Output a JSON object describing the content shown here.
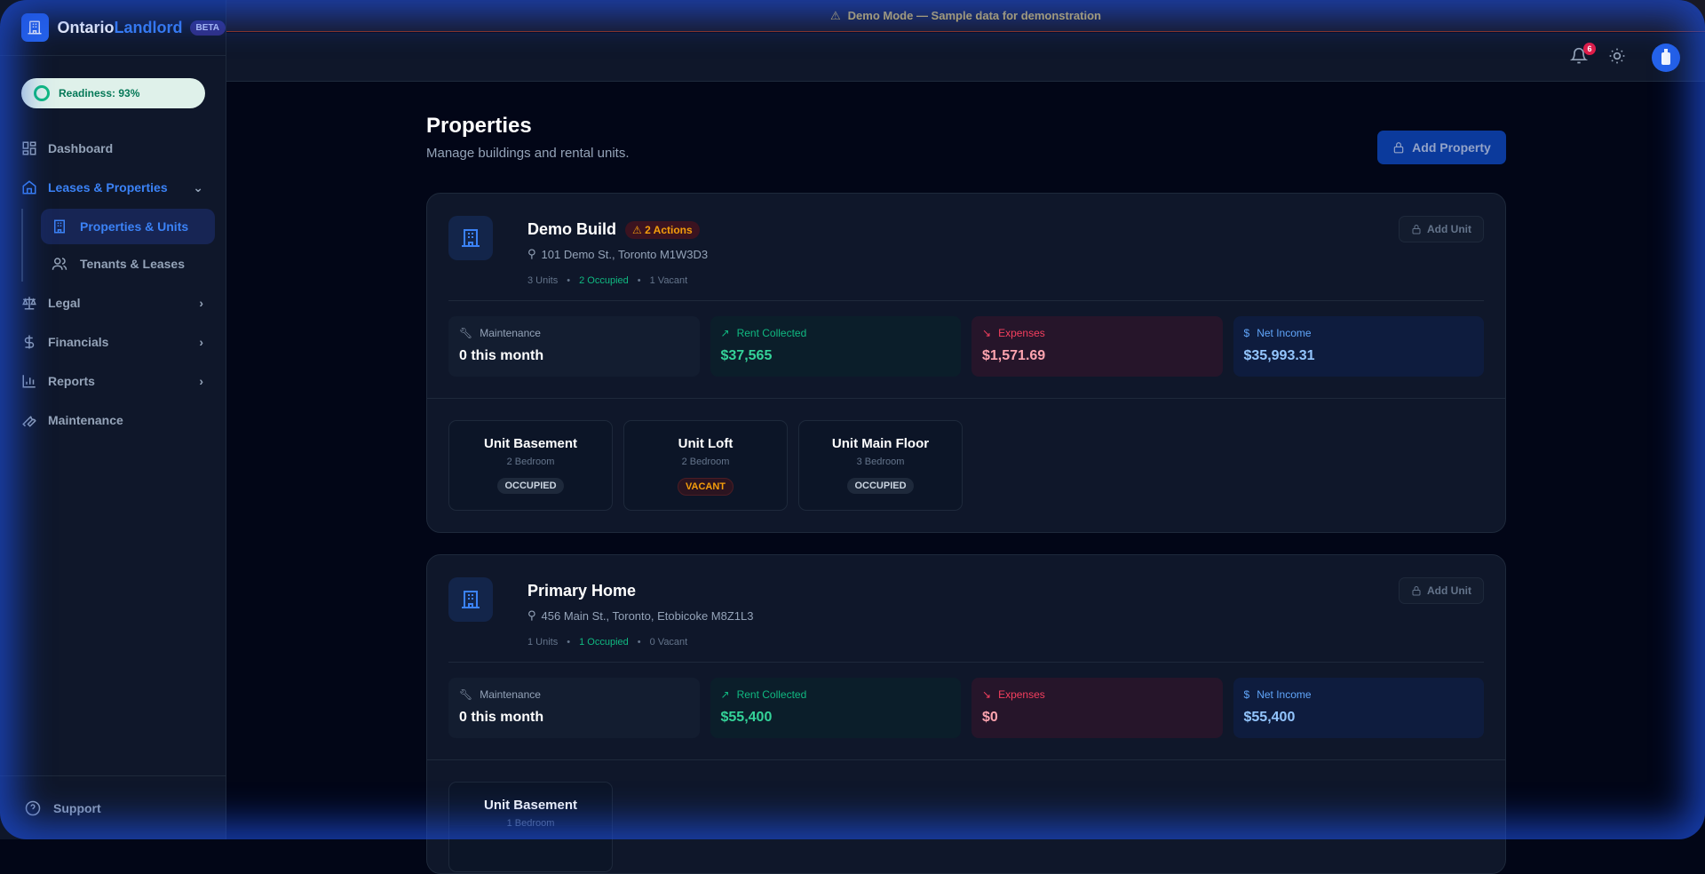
{
  "app": {
    "name_part1": "Ontario",
    "name_part2": "Landlord",
    "beta": "BETA"
  },
  "readiness": {
    "label": "Readiness: 93%",
    "percent": 93
  },
  "sidebar": {
    "items": [
      {
        "label": "Dashboard",
        "icon": "grid-icon"
      },
      {
        "label": "Leases & Properties",
        "icon": "home-icon",
        "expanded": true,
        "children": [
          {
            "label": "Properties & Units",
            "icon": "building-icon",
            "active": true
          },
          {
            "label": "Tenants & Leases",
            "icon": "users-icon"
          }
        ]
      },
      {
        "label": "Legal",
        "icon": "scale-icon"
      },
      {
        "label": "Financials",
        "icon": "dollar-icon"
      },
      {
        "label": "Reports",
        "icon": "bar-chart-icon"
      },
      {
        "label": "Maintenance",
        "icon": "wrench-icon"
      }
    ],
    "support": "Support"
  },
  "banner": "Demo Mode — Sample data for demonstration",
  "topbar": {
    "notifications": "6"
  },
  "page": {
    "title": "Properties",
    "subtitle": "Manage buildings and rental units.",
    "add_property": "Add Property"
  },
  "metric_labels": {
    "maintenance": "Maintenance",
    "rent": "Rent Collected",
    "expenses": "Expenses",
    "net": "Net Income"
  },
  "add_unit": "Add Unit",
  "properties": [
    {
      "name": "Demo Build",
      "actions": "2 Actions",
      "address": "101 Demo St., Toronto M1W3D3",
      "units_count": "3 Units",
      "occupied": "2 Occupied",
      "vacant": "1 Vacant",
      "maintenance": "0 this month",
      "rent": "$37,565",
      "expenses": "$1,571.69",
      "net": "$35,993.31",
      "units": [
        {
          "name": "Unit Basement",
          "beds": "2 Bedroom",
          "status": "OCCUPIED"
        },
        {
          "name": "Unit Loft",
          "beds": "2 Bedroom",
          "status": "VACANT"
        },
        {
          "name": "Unit Main Floor",
          "beds": "3 Bedroom",
          "status": "OCCUPIED"
        }
      ]
    },
    {
      "name": "Primary Home",
      "address": "456 Main St., Toronto, Etobicoke M8Z1L3",
      "units_count": "1 Units",
      "occupied": "1 Occupied",
      "vacant": "0 Vacant",
      "maintenance": "0 this month",
      "rent": "$55,400",
      "expenses": "$0",
      "net": "$55,400",
      "units": [
        {
          "name": "Unit Basement",
          "beds": "1 Bedroom"
        }
      ]
    }
  ]
}
